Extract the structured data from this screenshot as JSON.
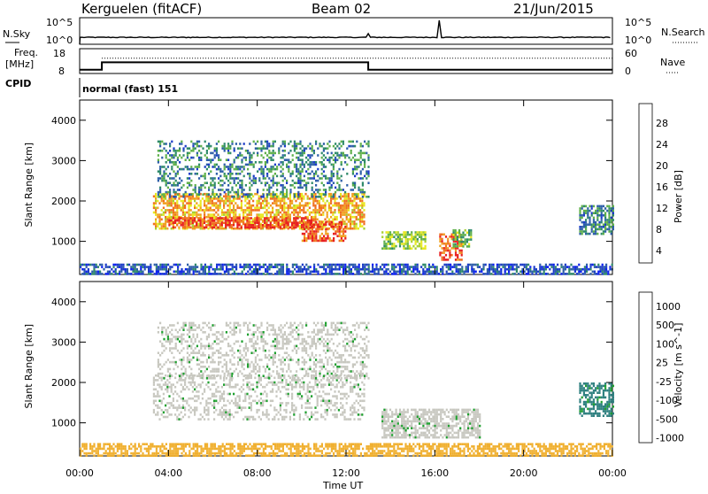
{
  "header": {
    "station": "Kerguelen (fitACF)",
    "beam": "Beam 02",
    "date": "21/Jun/2015"
  },
  "noise_panel": {
    "left_label": "N.Sky",
    "left_ticks": [
      "10^5",
      "10^0"
    ],
    "right_label": "N.Search",
    "right_ticks": [
      "10^5",
      "10^0"
    ]
  },
  "freq_panel": {
    "left_label_1": "Freq.",
    "left_label_2": "[MHz]",
    "left_ticks": [
      "18",
      "8"
    ],
    "right_label": "Nave",
    "right_ticks": [
      "60",
      "0"
    ]
  },
  "cpid": {
    "label": "CPID",
    "value": "normal (fast) 151"
  },
  "colors": {
    "scale_power": [
      "#0a1ff0",
      "#1c3cc8",
      "#2e5fa8",
      "#2f8a6a",
      "#5fb04a",
      "#a8d030",
      "#e8e820",
      "#f0a020",
      "#f07020",
      "#e82020"
    ],
    "scale_velocity": [
      "#e01010",
      "#f05018",
      "#f08020",
      "#f0b030",
      "#c8c8c0",
      "#60c040",
      "#20a030",
      "#2f8080",
      "#2050b0",
      "#1030d0"
    ],
    "ground_scatter": "#c8c8c0"
  },
  "chart_data": [
    {
      "type": "heatmap",
      "title": "",
      "xlabel": "",
      "ylabel": "Slant Range [km]",
      "xlim": [
        0,
        24
      ],
      "ylim": [
        180,
        4500
      ],
      "xticks": [
        0,
        4,
        8,
        12,
        16,
        20,
        24
      ],
      "yticks": [
        1000,
        2000,
        3000,
        4000
      ],
      "colorbar": {
        "label": "Power [dB]",
        "ticks": [
          "28",
          "24",
          "20",
          "16",
          "12",
          "8",
          "4"
        ],
        "range": [
          0,
          30
        ]
      },
      "echo_regions": [
        {
          "t0": 3.3,
          "t1": 12.8,
          "r0": 1300,
          "r1": 2200,
          "value": 22
        },
        {
          "t0": 4.0,
          "t1": 10.5,
          "r0": 1350,
          "r1": 1600,
          "value": 28
        },
        {
          "t0": 10.0,
          "t1": 12.0,
          "r0": 1000,
          "r1": 1500,
          "value": 27
        },
        {
          "t0": 3.5,
          "t1": 13.0,
          "r0": 2100,
          "r1": 3500,
          "value": 10
        },
        {
          "t0": 13.6,
          "t1": 15.6,
          "r0": 850,
          "r1": 1250,
          "value": 16
        },
        {
          "t0": 16.2,
          "t1": 17.2,
          "r0": 550,
          "r1": 1200,
          "value": 26
        },
        {
          "t0": 16.8,
          "t1": 17.6,
          "r0": 900,
          "r1": 1300,
          "value": 14
        },
        {
          "t0": 22.5,
          "t1": 24.0,
          "r0": 1200,
          "r1": 1900,
          "value": 10
        },
        {
          "t0": 0.0,
          "t1": 24.0,
          "r0": 200,
          "r1": 450,
          "value": 6
        }
      ]
    },
    {
      "type": "heatmap",
      "title": "",
      "xlabel": "Time UT",
      "ylabel": "Slant Range [km]",
      "xlim": [
        0,
        24
      ],
      "ylim": [
        180,
        4500
      ],
      "xticks": [
        0,
        4,
        8,
        12,
        16,
        20,
        24
      ],
      "xticklabels": [
        "00:00",
        "04:00",
        "08:00",
        "12:00",
        "16:00",
        "20:00",
        "00:00"
      ],
      "yticks": [
        1000,
        2000,
        3000,
        4000
      ],
      "colorbar": {
        "label": "Velocity [m s^-1]",
        "ticks": [
          "1000",
          "500",
          "100",
          "25",
          "-25",
          "-100",
          "-500",
          "-1000"
        ]
      },
      "echo_regions": [
        {
          "t0": 3.3,
          "t1": 12.8,
          "r0": 1100,
          "r1": 2200,
          "value": 0
        },
        {
          "t0": 13.6,
          "t1": 18.0,
          "r0": 650,
          "r1": 1350,
          "value": 0
        },
        {
          "t0": 0.0,
          "t1": 24.0,
          "r0": 200,
          "r1": 500,
          "value": -150
        },
        {
          "t0": 22.5,
          "t1": 24.0,
          "r0": 1200,
          "r1": 2000,
          "value": 120
        },
        {
          "t0": 3.5,
          "t1": 13.0,
          "r0": 2100,
          "r1": 3500,
          "value": 0
        }
      ]
    }
  ],
  "freq_series": {
    "freq_steps": [
      [
        0,
        9.5
      ],
      [
        1.0,
        12.5
      ],
      [
        13.0,
        9.5
      ],
      [
        24,
        9.5
      ]
    ],
    "nave_dotted": 37
  },
  "noise_series": {
    "level_log": 1.3,
    "spike_at": 16.2
  }
}
